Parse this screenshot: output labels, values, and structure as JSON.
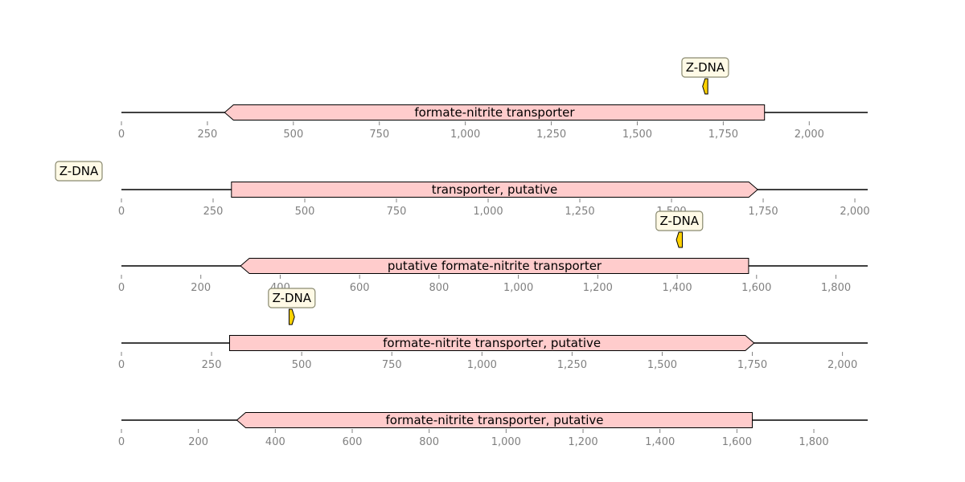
{
  "colors": {
    "backbone": "#000000",
    "gene_fill": "#ffcccc",
    "feature_fill": "#ffd200",
    "box_fill": "#fffae6",
    "box_stroke": "#8a8a70",
    "axis": "#808080"
  },
  "tracks": [
    {
      "length": 2170,
      "ticks": [
        0,
        250,
        500,
        750,
        1000,
        1250,
        1500,
        1750,
        2000
      ],
      "tick_labels": [
        "0",
        "250",
        "500",
        "750",
        "1,000",
        "1,250",
        "1,500",
        "1,750",
        "2,000"
      ],
      "gene": {
        "label": "formate-nitrite transporter",
        "start": 300,
        "end": 1870,
        "strand": -1
      },
      "feature": {
        "label": "Z-DNA",
        "start": 1690,
        "end": 1705,
        "strand": -1
      }
    },
    {
      "length": 2035,
      "ticks": [
        0,
        250,
        500,
        750,
        1000,
        1250,
        1500,
        1750,
        2000
      ],
      "tick_labels": [
        "0",
        "250",
        "500",
        "750",
        "1,000",
        "1,250",
        "1,500",
        "1,750",
        "2,000"
      ],
      "gene": {
        "label": "transporter, putative",
        "start": 300,
        "end": 1735,
        "strand": 1
      },
      "feature": {
        "label": "Z-DNA",
        "start": 0,
        "end": 0,
        "strand": 0,
        "offscreen": true
      }
    },
    {
      "length": 1880,
      "ticks": [
        0,
        200,
        400,
        600,
        800,
        1000,
        1200,
        1400,
        1600,
        1800
      ],
      "tick_labels": [
        "0",
        "200",
        "400",
        "600",
        "800",
        "1,000",
        "1,200",
        "1,400",
        "1,600",
        "1,800"
      ],
      "gene": {
        "label": "putative formate-nitrite transporter",
        "start": 300,
        "end": 1580,
        "strand": -1
      },
      "feature": {
        "label": "Z-DNA",
        "start": 1398,
        "end": 1413,
        "strand": -1
      }
    },
    {
      "length": 2070,
      "ticks": [
        0,
        250,
        500,
        750,
        1000,
        1250,
        1500,
        1750,
        2000
      ],
      "tick_labels": [
        "0",
        "250",
        "500",
        "750",
        "1,000",
        "1,250",
        "1,500",
        "1,750",
        "2,000"
      ],
      "gene": {
        "label": "formate-nitrite transporter, putative",
        "start": 300,
        "end": 1755,
        "strand": 1
      },
      "feature": {
        "label": "Z-DNA",
        "start": 465,
        "end": 480,
        "strand": 1
      }
    },
    {
      "length": 1940,
      "ticks": [
        0,
        200,
        400,
        600,
        800,
        1000,
        1200,
        1400,
        1600,
        1800
      ],
      "tick_labels": [
        "0",
        "200",
        "400",
        "600",
        "800",
        "1,000",
        "1,200",
        "1,400",
        "1,600",
        "1,800"
      ],
      "gene": {
        "label": "formate-nitrite transporter, putative",
        "start": 300,
        "end": 1640,
        "strand": -1
      },
      "feature": null
    }
  ]
}
